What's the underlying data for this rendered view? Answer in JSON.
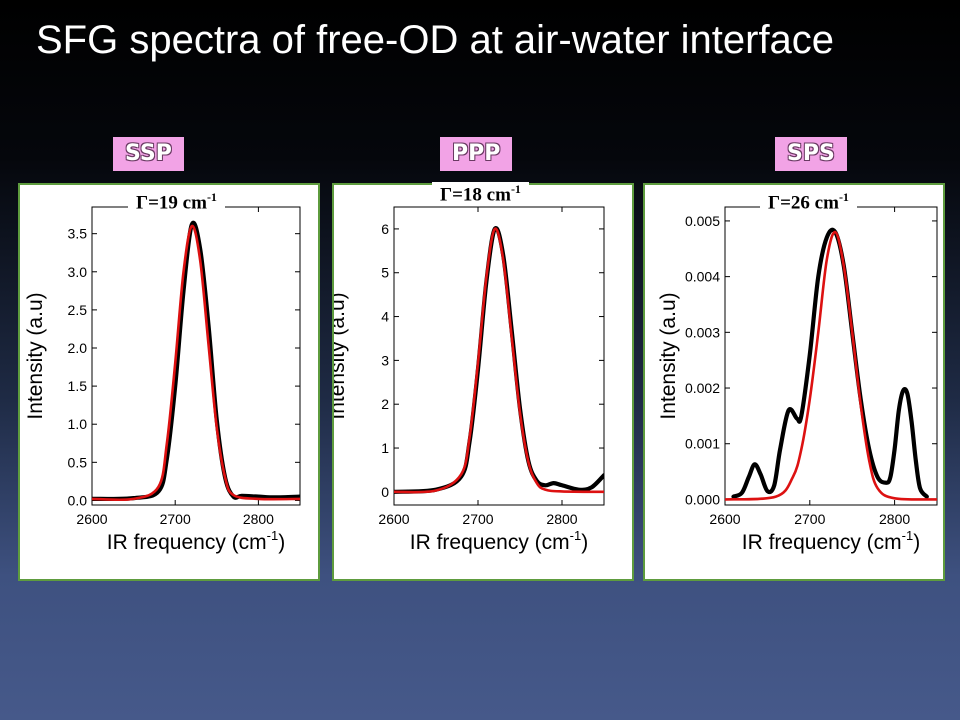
{
  "title": "SFG spectra of free-OD at air-water interface",
  "colors": {
    "data": "#000000",
    "fit": "#dd1111",
    "panel_border": "#5e9c3e",
    "badge": "#f2a3e6"
  },
  "chart_data": [
    {
      "type": "line",
      "label": "SSP",
      "gamma": {
        "text": "Γ=19 cm",
        "exp": "-1"
      },
      "xlabel": "IR frequency (cm",
      "xlabel_exp": "-1",
      "xlabel_end": ")",
      "ylabel": "Intensity (a.u)",
      "xlim": [
        2600,
        2850
      ],
      "ylim": [
        -0.06,
        3.85
      ],
      "xticks": [
        2600,
        2700,
        2800
      ],
      "yticks": [
        0.0,
        0.5,
        1.0,
        1.5,
        2.0,
        2.5,
        3.0,
        3.5
      ],
      "ytick_labels": [
        "0.0",
        "0.5",
        "1.0",
        "1.5",
        "2.0",
        "2.5",
        "3.0",
        "3.5"
      ],
      "series": [
        {
          "role": "data",
          "x": [
            2600,
            2650,
            2680,
            2690,
            2700,
            2710,
            2720,
            2730,
            2740,
            2750,
            2760,
            2770,
            2780,
            2800,
            2820,
            2850
          ],
          "y": [
            0.02,
            0.03,
            0.12,
            0.55,
            1.5,
            2.75,
            3.62,
            3.3,
            2.3,
            1.05,
            0.3,
            0.05,
            0.06,
            0.05,
            0.04,
            0.05
          ]
        },
        {
          "role": "fit",
          "x": [
            2600,
            2650,
            2680,
            2690,
            2700,
            2710,
            2720,
            2730,
            2740,
            2750,
            2760,
            2770,
            2800,
            2850
          ],
          "y": [
            0.02,
            0.02,
            0.18,
            0.75,
            1.8,
            3.0,
            3.6,
            3.15,
            2.05,
            0.95,
            0.3,
            0.07,
            0.02,
            0.02
          ]
        }
      ]
    },
    {
      "type": "line",
      "label": "PPP",
      "gamma": {
        "text": "Γ=18 cm",
        "exp": "-1"
      },
      "xlabel": "IR frequency (cm",
      "xlabel_exp": "-1",
      "xlabel_end": ")",
      "ylabel": "Intensity (a.u)",
      "xlim": [
        2600,
        2850
      ],
      "ylim": [
        -0.3,
        6.5
      ],
      "xticks": [
        2600,
        2700,
        2800
      ],
      "yticks": [
        0,
        1,
        2,
        3,
        4,
        5,
        6
      ],
      "ytick_labels": [
        "0",
        "1",
        "2",
        "3",
        "4",
        "5",
        "6"
      ],
      "series": [
        {
          "role": "data",
          "x": [
            2600,
            2650,
            2680,
            2690,
            2700,
            2710,
            2720,
            2730,
            2740,
            2750,
            2760,
            2770,
            2780,
            2790,
            2800,
            2820,
            2835,
            2850
          ],
          "y": [
            0.0,
            0.05,
            0.35,
            1.15,
            2.8,
            4.8,
            6.0,
            5.4,
            3.7,
            1.9,
            0.7,
            0.25,
            0.15,
            0.2,
            0.15,
            0.05,
            0.1,
            0.38
          ]
        },
        {
          "role": "fit",
          "x": [
            2600,
            2650,
            2680,
            2690,
            2700,
            2710,
            2720,
            2730,
            2740,
            2750,
            2760,
            2770,
            2780,
            2800,
            2850
          ],
          "y": [
            0.0,
            0.03,
            0.4,
            1.25,
            2.95,
            4.9,
            6.0,
            5.3,
            3.55,
            1.8,
            0.68,
            0.2,
            0.05,
            0.01,
            0.0
          ]
        }
      ]
    },
    {
      "type": "line",
      "label": "SPS",
      "gamma": {
        "text": "Γ=26 cm",
        "exp": "-1"
      },
      "xlabel": "IR frequency (cm",
      "xlabel_exp": "-1",
      "xlabel_end": ")",
      "ylabel": "Intensity (a.u)",
      "xlim": [
        2600,
        2850
      ],
      "ylim": [
        -0.0001,
        0.00525
      ],
      "xticks": [
        2600,
        2700,
        2800
      ],
      "yticks": [
        0.0,
        0.001,
        0.002,
        0.003,
        0.004,
        0.005
      ],
      "ytick_labels": [
        "0.000",
        "0.001",
        "0.002",
        "0.003",
        "0.004",
        "0.005"
      ],
      "series": [
        {
          "role": "data",
          "x": [
            2610,
            2620,
            2628,
            2635,
            2642,
            2650,
            2658,
            2665,
            2675,
            2685,
            2690,
            2700,
            2710,
            2720,
            2730,
            2740,
            2750,
            2760,
            2770,
            2780,
            2790,
            2795,
            2800,
            2805,
            2810,
            2815,
            2820,
            2825,
            2830,
            2838
          ],
          "y": [
            5e-05,
            0.00012,
            0.0004,
            0.00063,
            0.00045,
            0.00015,
            0.00025,
            0.0009,
            0.0016,
            0.00145,
            0.0015,
            0.0026,
            0.004,
            0.0047,
            0.0048,
            0.0042,
            0.003,
            0.0018,
            0.0009,
            0.0004,
            0.0003,
            0.0004,
            0.0009,
            0.0016,
            0.00195,
            0.0019,
            0.0014,
            0.0007,
            0.0002,
            5e-05
          ]
        },
        {
          "role": "fit",
          "x": [
            2600,
            2660,
            2680,
            2690,
            2700,
            2710,
            2720,
            2730,
            2740,
            2750,
            2760,
            2770,
            2780,
            2800,
            2850
          ],
          "y": [
            0.0,
            5e-05,
            0.0004,
            0.0009,
            0.0018,
            0.003,
            0.0043,
            0.0048,
            0.0042,
            0.003,
            0.0017,
            0.0007,
            0.0002,
            2e-05,
            0.0
          ]
        }
      ]
    }
  ]
}
